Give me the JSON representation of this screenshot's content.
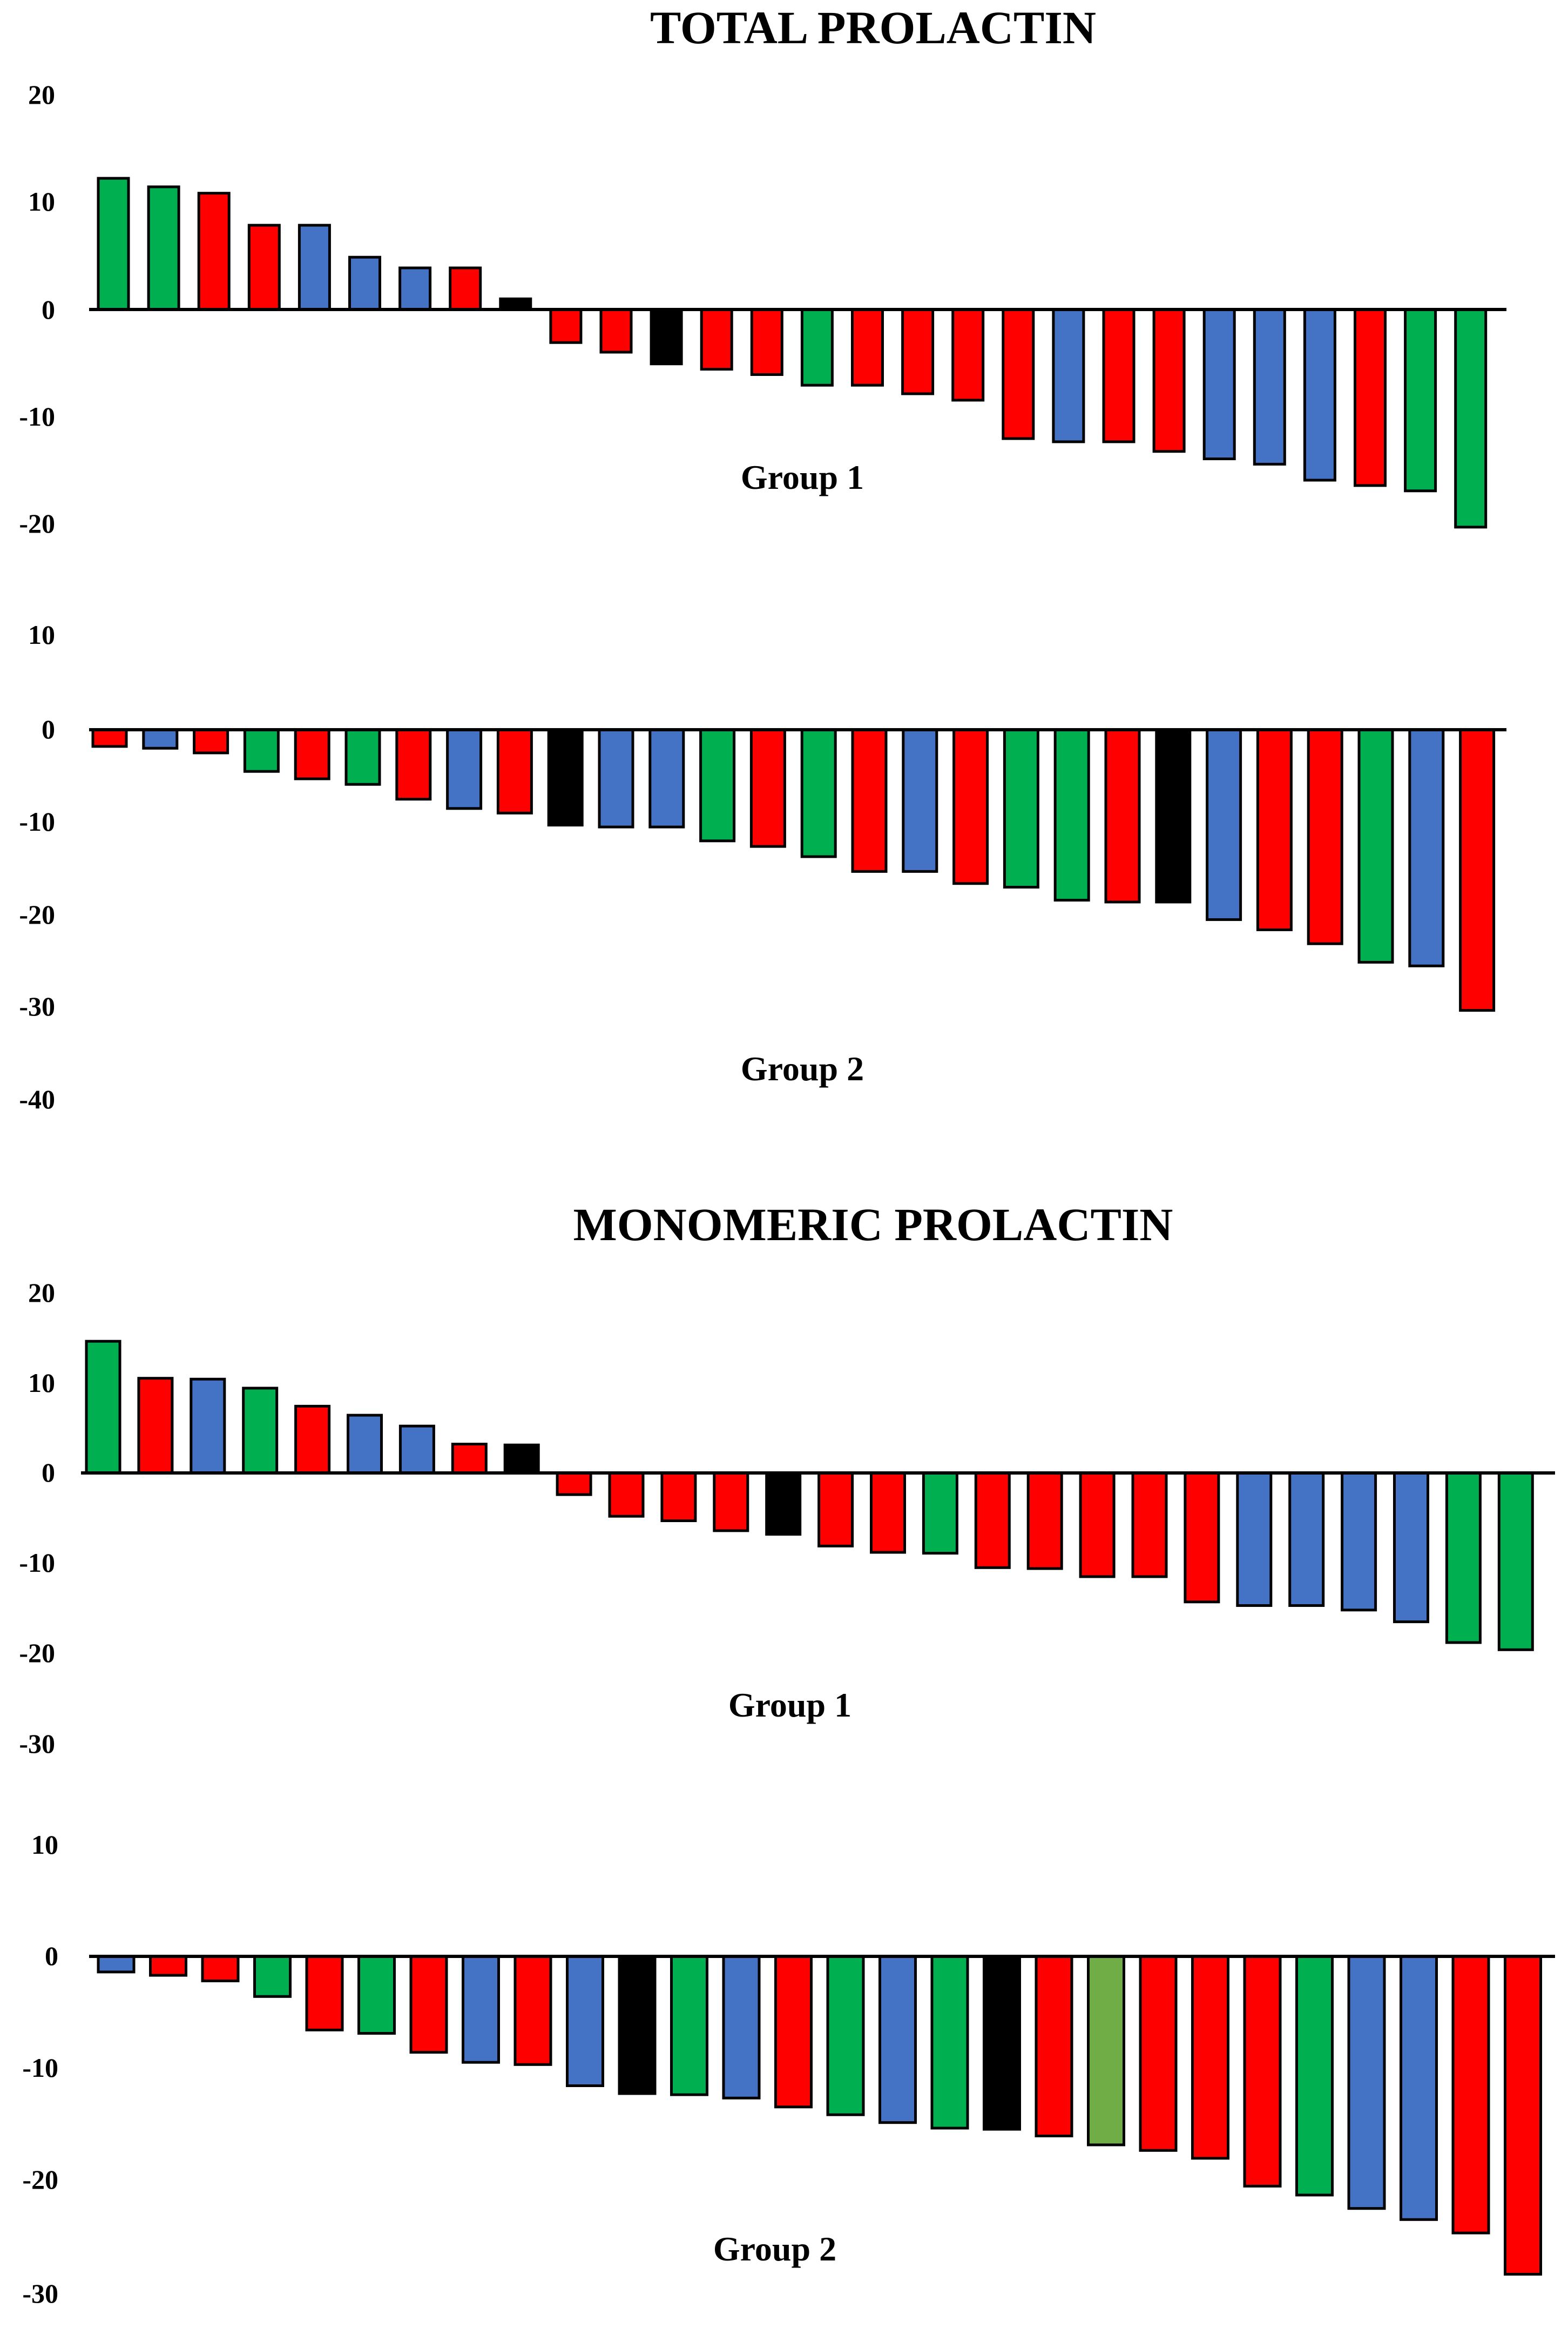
{
  "colors": {
    "red": "#ff0000",
    "blue": "#4472c4",
    "green": "#00b050",
    "black": "#000000",
    "olive": "#70ad47"
  },
  "chart_data": [
    {
      "type": "bar",
      "title": "TOTAL PROLACTIN",
      "label": "Group 1",
      "yticks": [
        20,
        10,
        0,
        -10,
        -20
      ],
      "ylim": [
        -20,
        20
      ],
      "values": [
        12.3,
        11.5,
        10.9,
        7.9,
        7.9,
        4.9,
        3.9,
        3.9,
        1.0,
        -3.1,
        -4.0,
        -5.1,
        -5.6,
        -6.1,
        -7.1,
        -7.1,
        -7.9,
        -8.5,
        -12.1,
        -12.4,
        -12.4,
        -13.3,
        -14.0,
        -14.5,
        -16.0,
        -16.5,
        -17.0,
        -20.4
      ],
      "colors": [
        "green",
        "green",
        "red",
        "red",
        "blue",
        "blue",
        "blue",
        "red",
        "black",
        "red",
        "red",
        "black",
        "red",
        "red",
        "green",
        "red",
        "red",
        "red",
        "red",
        "blue",
        "red",
        "red",
        "blue",
        "blue",
        "blue",
        "red",
        "green",
        "green"
      ]
    },
    {
      "type": "bar",
      "title": "",
      "label": "Group 2",
      "yticks": [
        10,
        0,
        -10,
        -20,
        -30,
        -40
      ],
      "ylim": [
        -40,
        10
      ],
      "values": [
        -1.8,
        -2.0,
        -2.5,
        -4.5,
        -5.3,
        -5.9,
        -7.5,
        -8.5,
        -9.0,
        -10.3,
        -10.5,
        -10.5,
        -12.0,
        -12.6,
        -13.7,
        -15.3,
        -15.3,
        -16.6,
        -17.0,
        -18.4,
        -18.6,
        -18.6,
        -20.5,
        -21.6,
        -23.1,
        -25.1,
        -25.5,
        -30.3
      ],
      "colors": [
        "red",
        "blue",
        "red",
        "green",
        "red",
        "green",
        "red",
        "blue",
        "red",
        "black",
        "blue",
        "blue",
        "green",
        "red",
        "green",
        "red",
        "blue",
        "red",
        "green",
        "green",
        "red",
        "black",
        "blue",
        "red",
        "red",
        "green",
        "blue",
        "red"
      ]
    },
    {
      "type": "bar",
      "title": "MONOMERIC PROLACTIN",
      "label": "Group 1",
      "yticks": [
        20,
        10,
        0,
        -10,
        -20,
        -30
      ],
      "ylim": [
        -30,
        20
      ],
      "values": [
        14.6,
        10.5,
        10.4,
        9.4,
        7.4,
        6.4,
        5.2,
        3.2,
        3.1,
        -2.4,
        -4.8,
        -5.3,
        -6.4,
        -6.8,
        -8.1,
        -8.8,
        -8.9,
        -10.5,
        -10.6,
        -11.5,
        -11.5,
        -14.3,
        -14.7,
        -14.7,
        -15.2,
        -16.5,
        -18.8,
        -19.6
      ],
      "colors": [
        "green",
        "red",
        "blue",
        "green",
        "red",
        "blue",
        "blue",
        "red",
        "black",
        "red",
        "red",
        "red",
        "red",
        "black",
        "red",
        "red",
        "green",
        "red",
        "red",
        "red",
        "red",
        "red",
        "blue",
        "blue",
        "blue",
        "blue",
        "green",
        "green"
      ]
    },
    {
      "type": "bar",
      "title": "",
      "label": "Group 2",
      "yticks": [
        10,
        0,
        -10,
        -20,
        -30
      ],
      "ylim": [
        -30,
        10
      ],
      "values": [
        -1.4,
        -1.7,
        -2.2,
        -3.6,
        -6.6,
        -6.9,
        -8.6,
        -9.5,
        -9.7,
        -11.6,
        -12.3,
        -12.4,
        -12.7,
        -13.5,
        -14.2,
        -14.9,
        -15.4,
        -15.5,
        -16.1,
        -16.9,
        -17.4,
        -18.1,
        -20.6,
        -21.4,
        -22.6,
        -23.6,
        -24.8,
        -28.5
      ],
      "colors": [
        "blue",
        "red",
        "red",
        "green",
        "red",
        "green",
        "red",
        "blue",
        "red",
        "blue",
        "black",
        "green",
        "blue",
        "red",
        "green",
        "blue",
        "green",
        "black",
        "red",
        "olive",
        "red",
        "red",
        "red",
        "green",
        "blue",
        "blue",
        "red",
        "red"
      ]
    }
  ]
}
